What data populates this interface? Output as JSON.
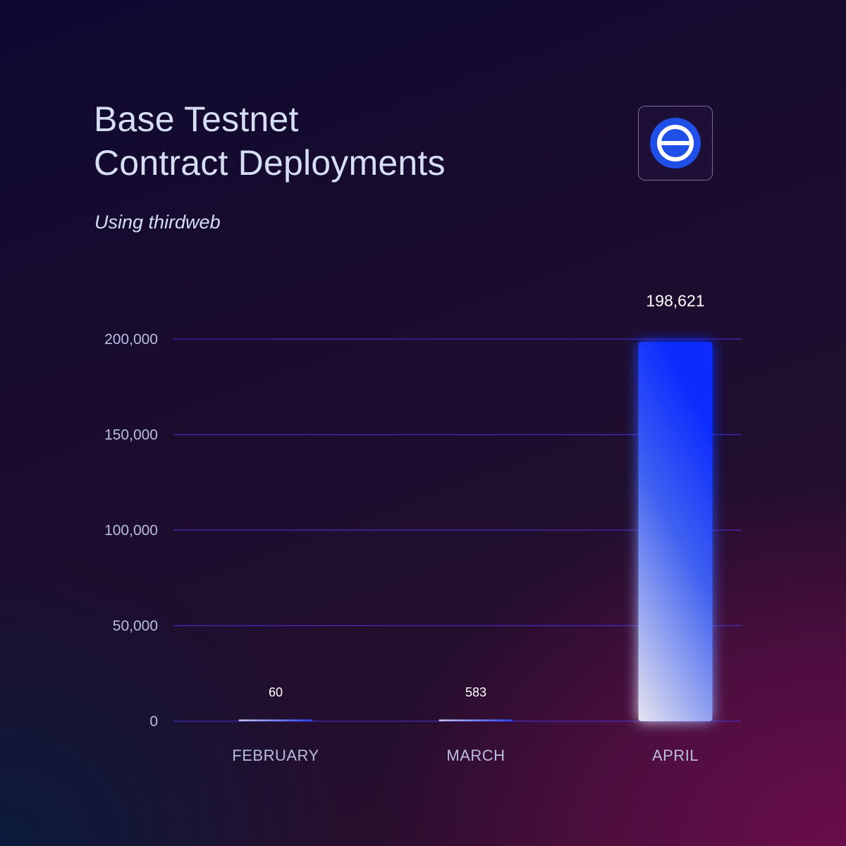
{
  "header": {
    "title_line1": "Base Testnet",
    "title_line2": "Contract Deployments",
    "subtitle": "Using thirdweb"
  },
  "logo": {
    "icon": "base-logo-icon",
    "color": "#1f4fe6"
  },
  "colors": {
    "axis_text": "#b9bde0",
    "gridline": "#4b2fd6",
    "bar_top": "#0b2bff",
    "bar_bottom": "#e6e4ef"
  },
  "chart_data": {
    "type": "bar",
    "categories": [
      "FEBRUARY",
      "MARCH",
      "APRIL"
    ],
    "values": [
      60,
      583,
      198621
    ],
    "value_labels": [
      "60",
      "583",
      "198,621"
    ],
    "ylim": [
      0,
      200000
    ],
    "yticks": [
      0,
      50000,
      100000,
      150000,
      200000
    ],
    "ytick_labels": [
      "0",
      "50,000",
      "100,000",
      "150,000",
      "200,000"
    ],
    "grid": true,
    "legend": "none"
  }
}
